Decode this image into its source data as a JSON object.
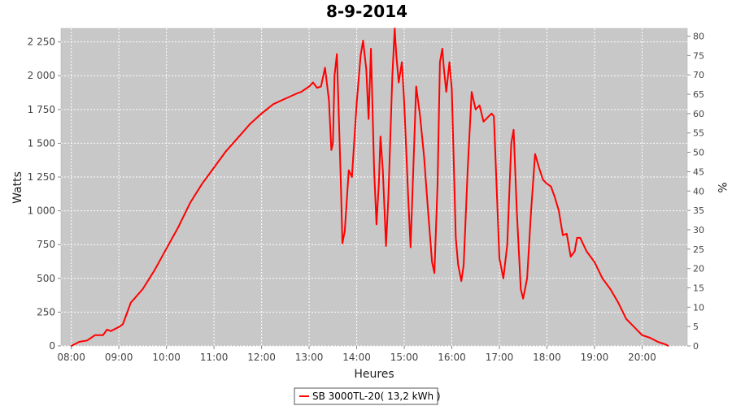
{
  "chart_data": {
    "type": "line",
    "title": "8-9-2014",
    "xlabel": "Heures",
    "ylabel": "Watts",
    "y2label": "%",
    "x_ticks": [
      "08:00",
      "09:00",
      "10:00",
      "11:00",
      "12:00",
      "13:00",
      "14:00",
      "15:00",
      "16:00",
      "17:00",
      "18:00",
      "19:00",
      "20:00"
    ],
    "y_ticks": [
      "0",
      "250",
      "500",
      "750",
      "1 000",
      "1 250",
      "1 500",
      "1 750",
      "2 000",
      "2 250"
    ],
    "y2_ticks": [
      "0",
      "5",
      "10",
      "15",
      "20",
      "25",
      "30",
      "35",
      "40",
      "45",
      "50",
      "55",
      "60",
      "65",
      "70",
      "75",
      "80"
    ],
    "xlim": [
      "07:47",
      "20:57"
    ],
    "ylim": [
      0,
      2350
    ],
    "y2lim": [
      0,
      82
    ],
    "grid": true,
    "background": "#c8c8c8",
    "legend_position": "bottom",
    "series": [
      {
        "name": "SB 3000TL-20( 13,2 kWh )",
        "color": "#ff0000",
        "points": [
          [
            "08:00",
            0
          ],
          [
            "08:10",
            30
          ],
          [
            "08:20",
            40
          ],
          [
            "08:30",
            80
          ],
          [
            "08:40",
            80
          ],
          [
            "08:45",
            120
          ],
          [
            "08:50",
            110
          ],
          [
            "09:00",
            140
          ],
          [
            "09:05",
            160
          ],
          [
            "09:10",
            240
          ],
          [
            "09:15",
            320
          ],
          [
            "09:30",
            420
          ],
          [
            "09:45",
            560
          ],
          [
            "10:00",
            720
          ],
          [
            "10:15",
            880
          ],
          [
            "10:30",
            1060
          ],
          [
            "10:45",
            1200
          ],
          [
            "11:00",
            1320
          ],
          [
            "11:15",
            1440
          ],
          [
            "11:30",
            1540
          ],
          [
            "11:45",
            1640
          ],
          [
            "12:00",
            1720
          ],
          [
            "12:15",
            1790
          ],
          [
            "12:30",
            1830
          ],
          [
            "12:45",
            1870
          ],
          [
            "12:50",
            1880
          ],
          [
            "13:00",
            1920
          ],
          [
            "13:05",
            1950
          ],
          [
            "13:10",
            1910
          ],
          [
            "13:15",
            1920
          ],
          [
            "13:20",
            2060
          ],
          [
            "13:25",
            1820
          ],
          [
            "13:28",
            1450
          ],
          [
            "13:30",
            1500
          ],
          [
            "13:32",
            2000
          ],
          [
            "13:35",
            2160
          ],
          [
            "13:37",
            1800
          ],
          [
            "13:40",
            1200
          ],
          [
            "13:42",
            760
          ],
          [
            "13:45",
            850
          ],
          [
            "13:50",
            1300
          ],
          [
            "13:54",
            1250
          ],
          [
            "14:00",
            1800
          ],
          [
            "14:05",
            2150
          ],
          [
            "14:08",
            2260
          ],
          [
            "14:12",
            2050
          ],
          [
            "14:15",
            1680
          ],
          [
            "14:18",
            2200
          ],
          [
            "14:22",
            1300
          ],
          [
            "14:25",
            900
          ],
          [
            "14:28",
            1200
          ],
          [
            "14:30",
            1550
          ],
          [
            "14:33",
            1300
          ],
          [
            "14:37",
            740
          ],
          [
            "14:40",
            1100
          ],
          [
            "14:45",
            2000
          ],
          [
            "14:48",
            2350
          ],
          [
            "14:50",
            2150
          ],
          [
            "14:53",
            1950
          ],
          [
            "14:57",
            2100
          ],
          [
            "15:00",
            1800
          ],
          [
            "15:05",
            1100
          ],
          [
            "15:08",
            730
          ],
          [
            "15:12",
            1400
          ],
          [
            "15:15",
            1920
          ],
          [
            "15:20",
            1700
          ],
          [
            "15:25",
            1400
          ],
          [
            "15:30",
            1000
          ],
          [
            "15:35",
            620
          ],
          [
            "15:38",
            540
          ],
          [
            "15:42",
            1200
          ],
          [
            "15:45",
            2100
          ],
          [
            "15:48",
            2200
          ],
          [
            "15:50",
            2050
          ],
          [
            "15:53",
            1880
          ],
          [
            "15:57",
            2100
          ],
          [
            "16:00",
            1900
          ],
          [
            "16:05",
            800
          ],
          [
            "16:08",
            600
          ],
          [
            "16:12",
            480
          ],
          [
            "16:15",
            600
          ],
          [
            "16:20",
            1300
          ],
          [
            "16:25",
            1880
          ],
          [
            "16:30",
            1750
          ],
          [
            "16:35",
            1780
          ],
          [
            "16:40",
            1660
          ],
          [
            "16:45",
            1690
          ],
          [
            "16:50",
            1720
          ],
          [
            "16:53",
            1700
          ],
          [
            "16:57",
            1100
          ],
          [
            "17:00",
            650
          ],
          [
            "17:05",
            500
          ],
          [
            "17:10",
            750
          ],
          [
            "17:15",
            1500
          ],
          [
            "17:18",
            1600
          ],
          [
            "17:22",
            1000
          ],
          [
            "17:27",
            420
          ],
          [
            "17:30",
            350
          ],
          [
            "17:35",
            500
          ],
          [
            "17:40",
            1000
          ],
          [
            "17:45",
            1420
          ],
          [
            "17:50",
            1320
          ],
          [
            "17:55",
            1230
          ],
          [
            "18:00",
            1200
          ],
          [
            "18:05",
            1180
          ],
          [
            "18:10",
            1100
          ],
          [
            "18:15",
            1000
          ],
          [
            "18:20",
            820
          ],
          [
            "18:25",
            830
          ],
          [
            "18:30",
            660
          ],
          [
            "18:35",
            700
          ],
          [
            "18:38",
            800
          ],
          [
            "18:42",
            800
          ],
          [
            "18:50",
            700
          ],
          [
            "19:00",
            620
          ],
          [
            "19:10",
            500
          ],
          [
            "19:20",
            420
          ],
          [
            "19:30",
            320
          ],
          [
            "19:40",
            200
          ],
          [
            "19:50",
            140
          ],
          [
            "20:00",
            80
          ],
          [
            "20:10",
            60
          ],
          [
            "20:20",
            30
          ],
          [
            "20:30",
            10
          ],
          [
            "20:33",
            0
          ]
        ]
      }
    ]
  }
}
